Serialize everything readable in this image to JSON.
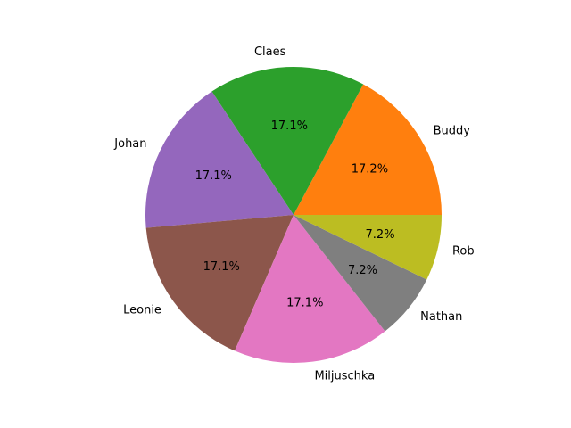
{
  "chart_data": {
    "type": "pie",
    "title": "",
    "start_angle_deg": 0,
    "direction": "counterclockwise",
    "slices": [
      {
        "label": "Buddy",
        "value": 17.2,
        "pct_label": "17.2%",
        "color": "#ff7f0e"
      },
      {
        "label": "Claes",
        "value": 17.1,
        "pct_label": "17.1%",
        "color": "#2ca02c"
      },
      {
        "label": "Johan",
        "value": 17.1,
        "pct_label": "17.1%",
        "color": "#9467bd"
      },
      {
        "label": "Leonie",
        "value": 17.1,
        "pct_label": "17.1%",
        "color": "#8c564b"
      },
      {
        "label": "Miljuschka",
        "value": 17.1,
        "pct_label": "17.1%",
        "color": "#e377c2"
      },
      {
        "label": "Nathan",
        "value": 7.2,
        "pct_label": "7.2%",
        "color": "#7f7f7f"
      },
      {
        "label": "Rob",
        "value": 7.2,
        "pct_label": "7.2%",
        "color": "#bcbd22"
      }
    ]
  }
}
